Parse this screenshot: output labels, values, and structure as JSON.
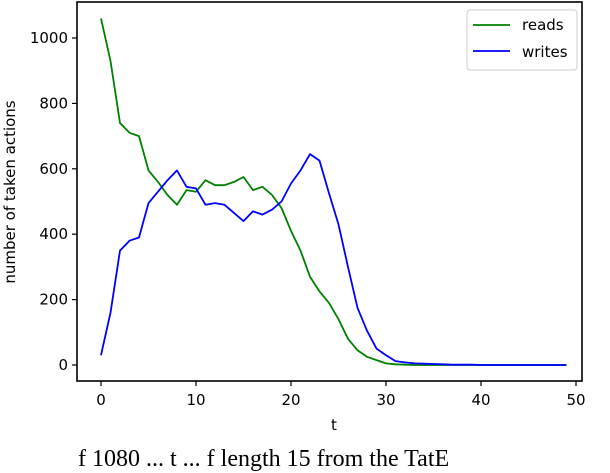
{
  "chart_data": {
    "type": "line",
    "title": "",
    "xlabel": "t",
    "ylabel": "number of taken actions",
    "xlim": [
      -2.5,
      51.5
    ],
    "ylim": [
      -50,
      1110
    ],
    "xticks": [
      0,
      10,
      20,
      30,
      40,
      50
    ],
    "yticks": [
      0,
      200,
      400,
      600,
      800,
      1000
    ],
    "grid": false,
    "legend_position": "upper right",
    "x": [
      0,
      1,
      2,
      3,
      4,
      5,
      6,
      7,
      8,
      9,
      10,
      11,
      12,
      13,
      14,
      15,
      16,
      17,
      18,
      19,
      20,
      21,
      22,
      23,
      24,
      25,
      26,
      27,
      28,
      29,
      30,
      31,
      32,
      33,
      34,
      35,
      36,
      37,
      38,
      39,
      40,
      41,
      42,
      43,
      44,
      45,
      46,
      47,
      48,
      49
    ],
    "series": [
      {
        "name": "reads",
        "color": "#008000",
        "values": [
          1060,
          930,
          740,
          710,
          700,
          595,
          560,
          520,
          490,
          535,
          530,
          565,
          550,
          550,
          560,
          575,
          535,
          545,
          520,
          480,
          410,
          350,
          270,
          225,
          190,
          140,
          80,
          45,
          25,
          15,
          5,
          2,
          1,
          0,
          0,
          0,
          0,
          0,
          0,
          0,
          0,
          0,
          0,
          0,
          0,
          0,
          0,
          0,
          0,
          0
        ]
      },
      {
        "name": "writes",
        "color": "#0000ff",
        "values": [
          30,
          160,
          350,
          380,
          390,
          495,
          530,
          565,
          595,
          545,
          540,
          490,
          495,
          490,
          465,
          440,
          470,
          460,
          475,
          500,
          555,
          595,
          645,
          625,
          525,
          430,
          300,
          175,
          105,
          50,
          30,
          12,
          8,
          5,
          4,
          3,
          2,
          1,
          1,
          1,
          0,
          0,
          0,
          0,
          0,
          0,
          0,
          0,
          0,
          0
        ]
      }
    ]
  },
  "legend": {
    "items": [
      {
        "label": "reads",
        "color": "#008000"
      },
      {
        "label": "writes",
        "color": "#0000ff"
      }
    ]
  },
  "axes": {
    "xlabel": "t",
    "ylabel": "number of taken actions",
    "xtick_labels": [
      "0",
      "10",
      "20",
      "30",
      "40",
      "50"
    ],
    "ytick_labels": [
      "0",
      "200",
      "400",
      "600",
      "800",
      "1000"
    ]
  },
  "caption": "f 1080 ... t ... f length 15 from the TatE"
}
